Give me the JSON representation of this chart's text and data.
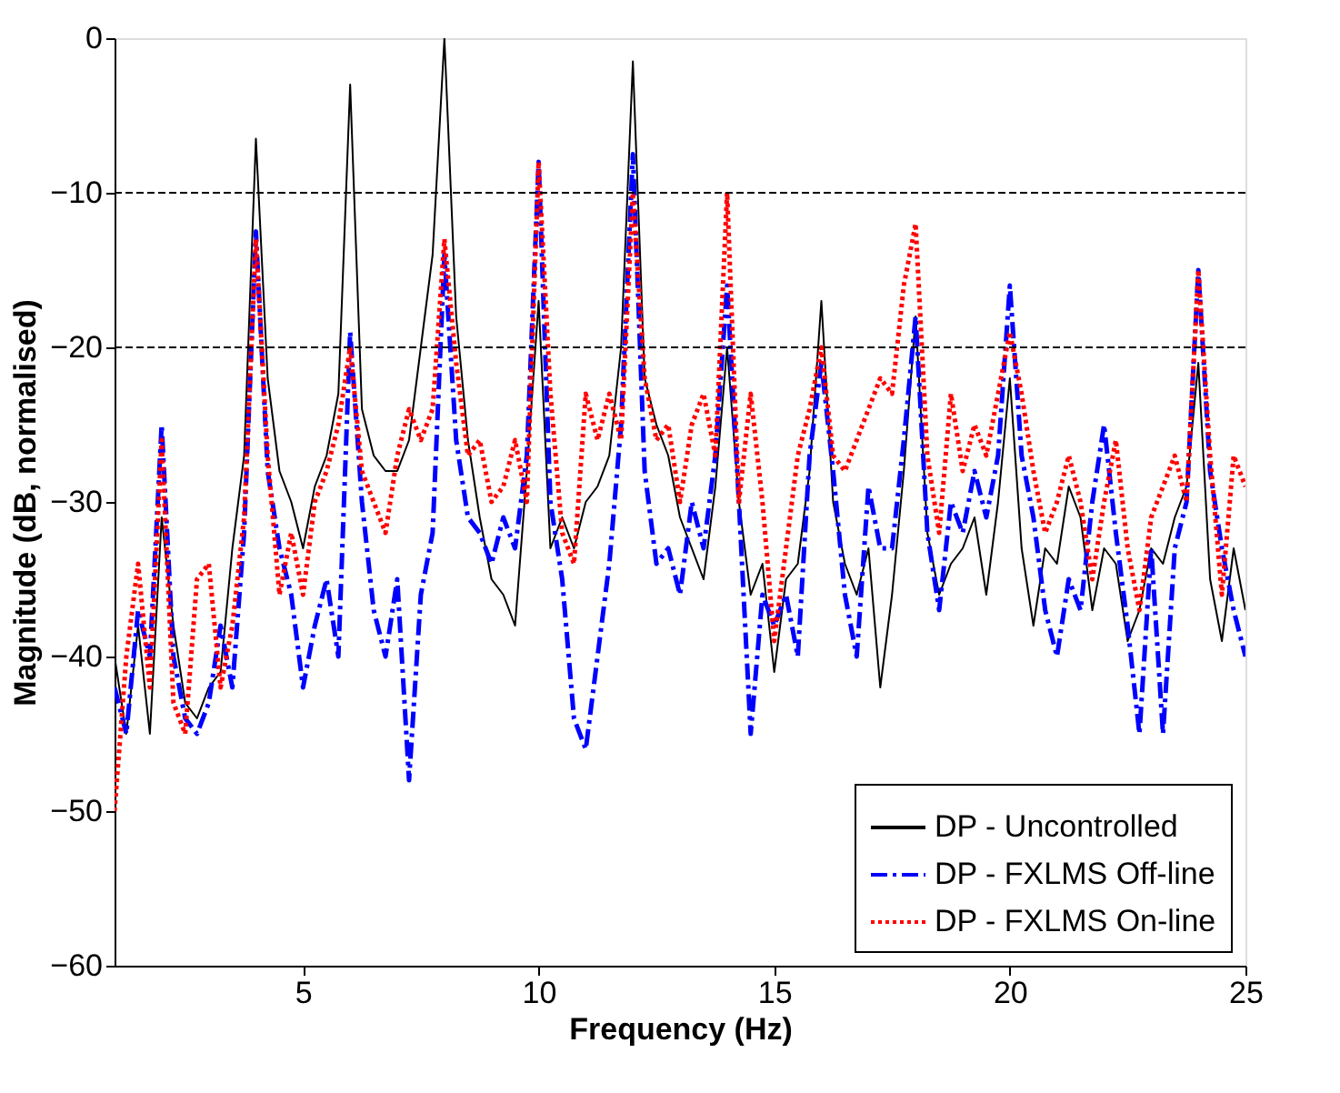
{
  "chart_data": {
    "type": "line",
    "xlabel": "Frequency (Hz)",
    "ylabel": "Magnitude (dB, normalised)",
    "x": [
      1.0,
      1.25,
      1.5,
      1.75,
      2.0,
      2.25,
      2.5,
      2.75,
      3.0,
      3.25,
      3.5,
      3.75,
      4.0,
      4.25,
      4.5,
      4.75,
      5.0,
      5.25,
      5.5,
      5.75,
      6.0,
      6.25,
      6.5,
      6.75,
      7.0,
      7.25,
      7.5,
      7.75,
      8.0,
      8.25,
      8.5,
      8.75,
      9.0,
      9.25,
      9.5,
      9.75,
      10.0,
      10.25,
      10.5,
      10.75,
      11.0,
      11.25,
      11.5,
      11.75,
      12.0,
      12.25,
      12.5,
      12.75,
      13.0,
      13.25,
      13.5,
      13.75,
      14.0,
      14.25,
      14.5,
      14.75,
      15.0,
      15.25,
      15.5,
      15.75,
      16.0,
      16.25,
      16.5,
      16.75,
      17.0,
      17.25,
      17.5,
      17.75,
      18.0,
      18.25,
      18.5,
      18.75,
      19.0,
      19.25,
      19.5,
      19.75,
      20.0,
      20.25,
      20.5,
      20.75,
      21.0,
      21.25,
      21.5,
      21.75,
      22.0,
      22.25,
      22.5,
      22.75,
      23.0,
      23.25,
      23.5,
      23.75,
      24.0,
      24.25,
      24.5,
      24.75,
      25.0
    ],
    "series": [
      {
        "name": "DP - Uncontrolled",
        "color": "#000000",
        "line_style": "solid",
        "values": [
          -40,
          -45,
          -38,
          -45,
          -31,
          -38,
          -43,
          -44,
          -42,
          -41,
          -33,
          -27,
          -6.5,
          -22,
          -28,
          -30,
          -33,
          -29,
          -27,
          -23,
          -3,
          -24,
          -27,
          -28,
          -28,
          -26,
          -20,
          -14,
          0,
          -18,
          -26,
          -31,
          -35,
          -36,
          -38,
          -28,
          -17,
          -33,
          -31,
          -33,
          -30,
          -29,
          -27,
          -20,
          -1.5,
          -22,
          -25,
          -27,
          -31,
          -33,
          -35,
          -29,
          -20,
          -30,
          -36,
          -34,
          -41,
          -35,
          -34,
          -28,
          -17,
          -30,
          -34,
          -36,
          -33,
          -42,
          -36,
          -28,
          -18,
          -32,
          -36,
          -34,
          -33,
          -31,
          -36,
          -30,
          -22,
          -33,
          -38,
          -33,
          -34,
          -29,
          -31,
          -37,
          -33,
          -34,
          -39,
          -37,
          -33,
          -34,
          -31,
          -29,
          -21,
          -35,
          -39,
          -33,
          -37
        ]
      },
      {
        "name": "DP - FXLMS Off-line",
        "color": "#0000ff",
        "line_style": "dashed",
        "values": [
          -42,
          -45,
          -37,
          -40,
          -25,
          -40,
          -44,
          -45,
          -43,
          -38,
          -42,
          -32,
          -12.5,
          -28,
          -33,
          -36,
          -42,
          -38,
          -35,
          -40,
          -19,
          -30,
          -37,
          -40,
          -35,
          -48,
          -36,
          -32,
          -14,
          -26,
          -31,
          -32,
          -34,
          -31,
          -33,
          -27,
          -8,
          -30,
          -35,
          -44,
          -46,
          -40,
          -34,
          -25,
          -7.5,
          -28,
          -34,
          -33,
          -36,
          -30,
          -33,
          -27,
          -16,
          -30,
          -45,
          -36,
          -38,
          -36,
          -40,
          -27,
          -21,
          -28,
          -36,
          -40,
          -29,
          -33,
          -33,
          -26,
          -18,
          -32,
          -37,
          -30,
          -32,
          -28,
          -31,
          -27,
          -16,
          -27,
          -31,
          -37,
          -40,
          -35,
          -37,
          -30,
          -25,
          -32,
          -38,
          -45,
          -33,
          -45,
          -33,
          -30,
          -15,
          -28,
          -33,
          -37,
          -40
        ]
      },
      {
        "name": "DP - FXLMS On-line",
        "color": "#ff0000",
        "line_style": "dotted",
        "values": [
          -50,
          -40,
          -34,
          -42,
          -26,
          -43,
          -45,
          -35,
          -34,
          -42,
          -38,
          -31,
          -13,
          -27,
          -36,
          -32,
          -36,
          -30,
          -28,
          -25,
          -20,
          -28,
          -30,
          -32,
          -27,
          -24,
          -26,
          -24,
          -13,
          -21,
          -27,
          -26,
          -30,
          -29,
          -26,
          -30,
          -8,
          -23,
          -32,
          -34,
          -23,
          -26,
          -23,
          -26,
          -10,
          -22,
          -26,
          -25,
          -30,
          -25,
          -23,
          -27,
          -10,
          -30,
          -23,
          -30,
          -39,
          -33,
          -27,
          -24,
          -20,
          -27,
          -28,
          -26,
          -24,
          -22,
          -23,
          -16,
          -12,
          -27,
          -32,
          -23,
          -28,
          -25,
          -27,
          -23,
          -19,
          -23,
          -28,
          -32,
          -30,
          -27,
          -30,
          -35,
          -30,
          -26,
          -33,
          -37,
          -31,
          -29,
          -27,
          -30,
          -15,
          -27,
          -36,
          -27,
          -29
        ]
      }
    ],
    "xlim": [
      1,
      25
    ],
    "xticks": [
      5,
      10,
      15,
      20,
      25
    ],
    "ylim": [
      -60,
      0
    ],
    "yticks": [
      -60,
      -50,
      -40,
      -30,
      -20,
      -10,
      0
    ],
    "ref_lines": [
      {
        "axis": "y",
        "value": -10,
        "color": "#000000",
        "line_style": "dashed"
      },
      {
        "axis": "y",
        "value": -20,
        "color": "#000000",
        "line_style": "dashed"
      }
    ],
    "grid": false,
    "legend": "bottom right"
  }
}
